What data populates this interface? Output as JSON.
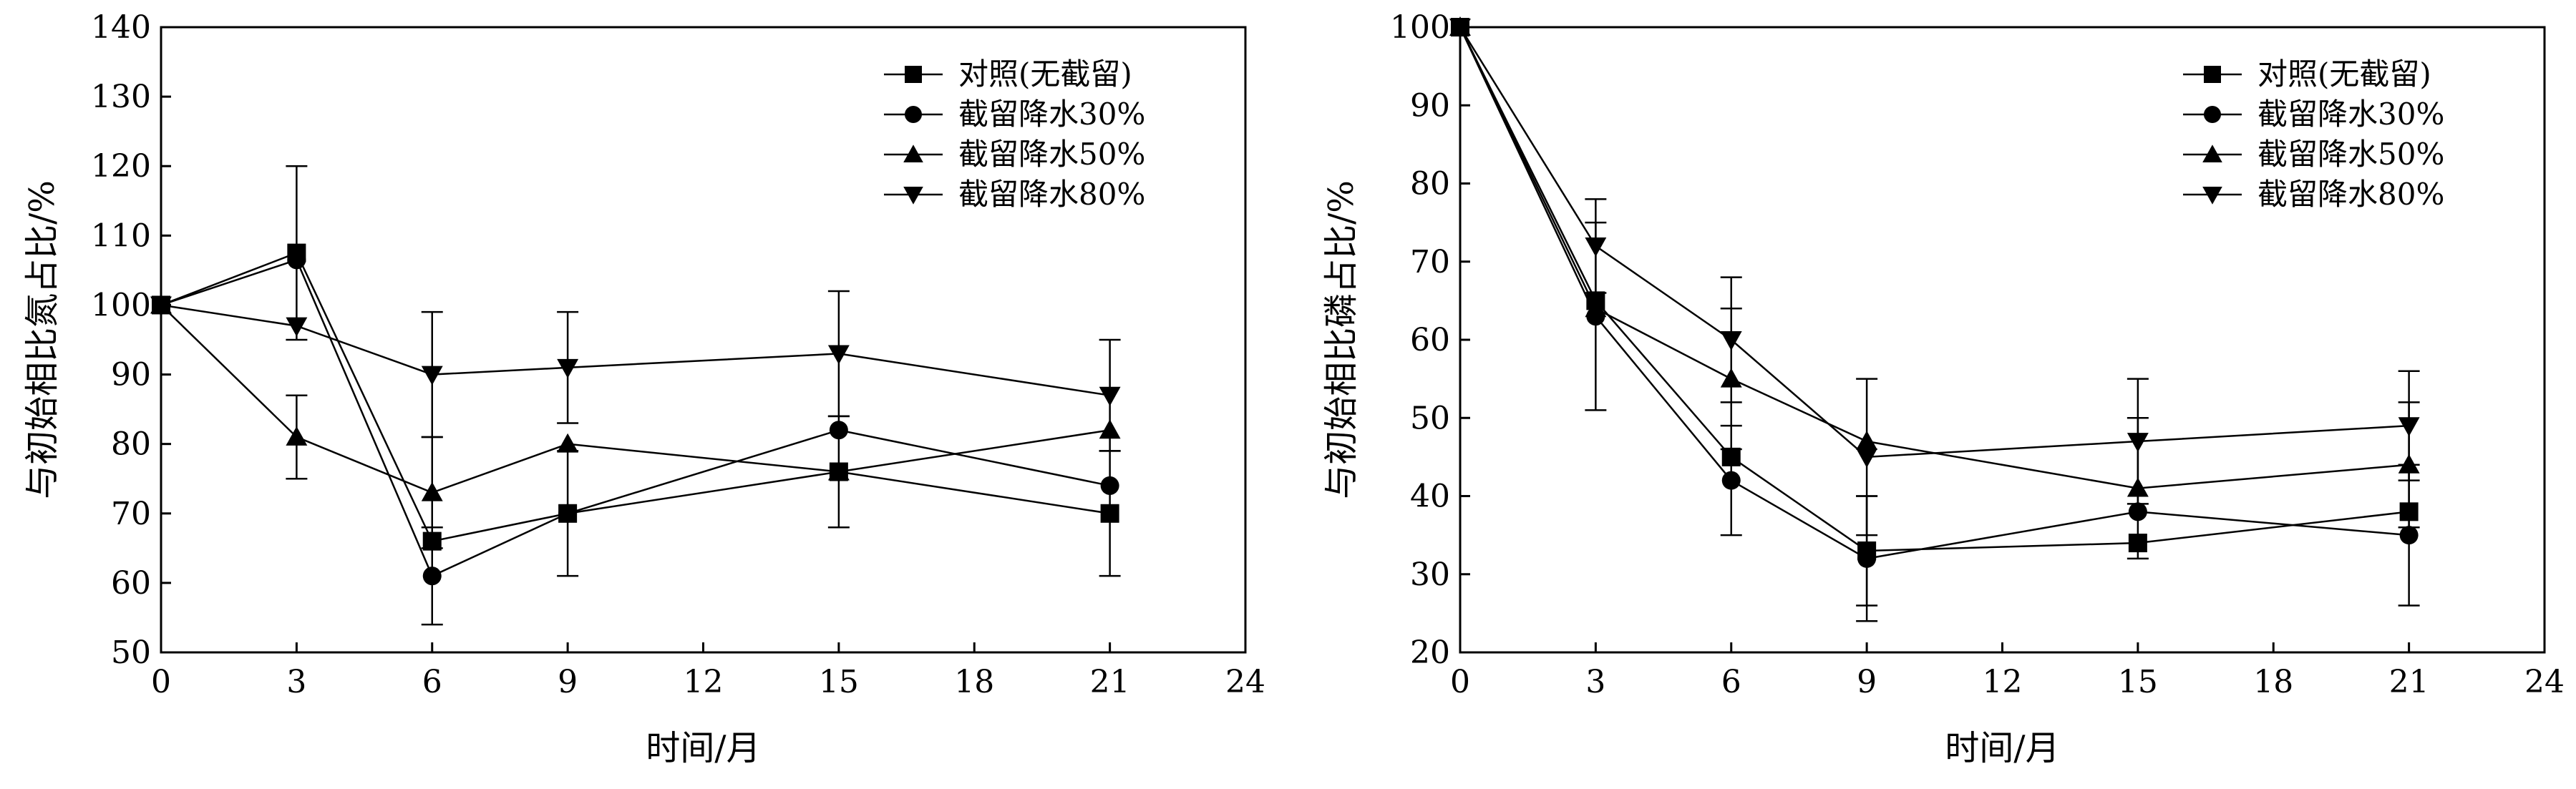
{
  "chart_data": [
    {
      "type": "line",
      "xlabel": "时间/月",
      "ylabel": "与初始相比氮占比/%",
      "xlim": [
        0,
        24
      ],
      "ylim": [
        50,
        140
      ],
      "xticks": [
        0,
        3,
        6,
        9,
        12,
        15,
        18,
        21,
        24
      ],
      "yticks": [
        50,
        60,
        70,
        80,
        90,
        100,
        110,
        120,
        130,
        140
      ],
      "grid": false,
      "legend_position": "top-right",
      "series": [
        {
          "name": "对照(无截留)",
          "marker": "square",
          "x": [
            0,
            3,
            6,
            9,
            15,
            21
          ],
          "values": [
            100,
            107.5,
            66,
            70,
            76,
            70
          ],
          "error": [
            0,
            12.5,
            0,
            0,
            0,
            9
          ]
        },
        {
          "name": "截留降水30%",
          "marker": "circle",
          "x": [
            0,
            3,
            6,
            9,
            15,
            21
          ],
          "values": [
            100,
            106.5,
            61,
            70,
            82,
            74
          ],
          "error": [
            0,
            0,
            7,
            9,
            0,
            0
          ]
        },
        {
          "name": "截留降水50%",
          "marker": "triangle-up",
          "x": [
            0,
            3,
            6,
            9,
            15,
            21
          ],
          "values": [
            100,
            81,
            73,
            80,
            76,
            82
          ],
          "error": [
            0,
            6,
            8,
            0,
            8,
            0
          ]
        },
        {
          "name": "截留降水80%",
          "marker": "triangle-down",
          "x": [
            0,
            3,
            6,
            9,
            15,
            21
          ],
          "values": [
            100,
            97,
            90,
            91,
            93,
            87
          ],
          "error": [
            0,
            0,
            9,
            8,
            9,
            8
          ]
        }
      ]
    },
    {
      "type": "line",
      "xlabel": "时间/月",
      "ylabel": "与初始相比磷占比/%",
      "xlim": [
        0,
        24
      ],
      "ylim": [
        20,
        100
      ],
      "xticks": [
        0,
        3,
        6,
        9,
        12,
        15,
        18,
        21,
        24
      ],
      "yticks": [
        20,
        30,
        40,
        50,
        60,
        70,
        80,
        90,
        100
      ],
      "grid": false,
      "legend_position": "top-right",
      "series": [
        {
          "name": "对照(无截留)",
          "marker": "square",
          "x": [
            0,
            3,
            6,
            9,
            15,
            21
          ],
          "values": [
            100,
            65,
            45,
            33,
            34,
            38
          ],
          "error": [
            0,
            0,
            0,
            7,
            0,
            0
          ]
        },
        {
          "name": "截留降水30%",
          "marker": "circle",
          "x": [
            0,
            3,
            6,
            9,
            15,
            21
          ],
          "values": [
            100,
            63,
            42,
            32,
            38,
            35
          ],
          "error": [
            0,
            12,
            7,
            8,
            0,
            9
          ]
        },
        {
          "name": "截留降水50%",
          "marker": "triangle-up",
          "x": [
            0,
            3,
            6,
            9,
            15,
            21
          ],
          "values": [
            100,
            64,
            55,
            47,
            41,
            44
          ],
          "error": [
            0,
            0,
            9,
            0,
            9,
            8
          ]
        },
        {
          "name": "截留降水80%",
          "marker": "triangle-down",
          "x": [
            0,
            3,
            6,
            9,
            15,
            21
          ],
          "values": [
            100,
            72,
            60,
            45,
            47,
            49
          ],
          "error": [
            0,
            6,
            8,
            10,
            8,
            7
          ]
        }
      ]
    }
  ]
}
